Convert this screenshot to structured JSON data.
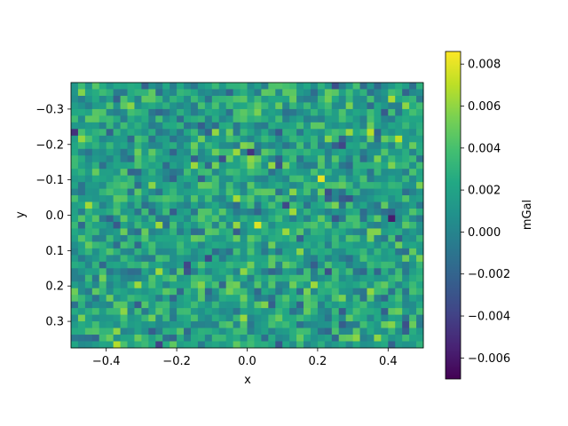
{
  "chart_data": {
    "type": "heatmap",
    "title": "",
    "xlabel": "x",
    "ylabel": "y",
    "xlim": [
      -0.5,
      0.5
    ],
    "ylim": [
      0.375,
      -0.375
    ],
    "y_axis_inverted": true,
    "grid": false,
    "colormap": "viridis",
    "colorbar": {
      "label": "mGal",
      "vmin": -0.007,
      "vmax": 0.0086,
      "ticks": [
        0.008,
        0.006,
        0.004,
        0.002,
        0.0,
        -0.002,
        -0.004,
        -0.006
      ],
      "tick_labels": [
        "0.008",
        "0.006",
        "0.004",
        "0.002",
        "0.000",
        "−0.002",
        "−0.004",
        "−0.006"
      ]
    },
    "x_ticks": [
      -0.4,
      -0.2,
      0.0,
      0.2,
      0.4
    ],
    "x_tick_labels": [
      "−0.4",
      "−0.2",
      "0.0",
      "0.2",
      "0.4"
    ],
    "y_ticks": [
      -0.3,
      -0.2,
      -0.1,
      0.0,
      0.1,
      0.2,
      0.3
    ],
    "y_tick_labels": [
      "−0.3",
      "−0.2",
      "−0.1",
      "0.0",
      "0.1",
      "0.2",
      "0.3"
    ],
    "grid_shape": {
      "rows": 40,
      "cols": 50
    },
    "data_description": "random noise field, approximately mean 0.002 mGal, std 0.002 mGal",
    "values_mean": 0.0018,
    "values_std": 0.0019
  }
}
